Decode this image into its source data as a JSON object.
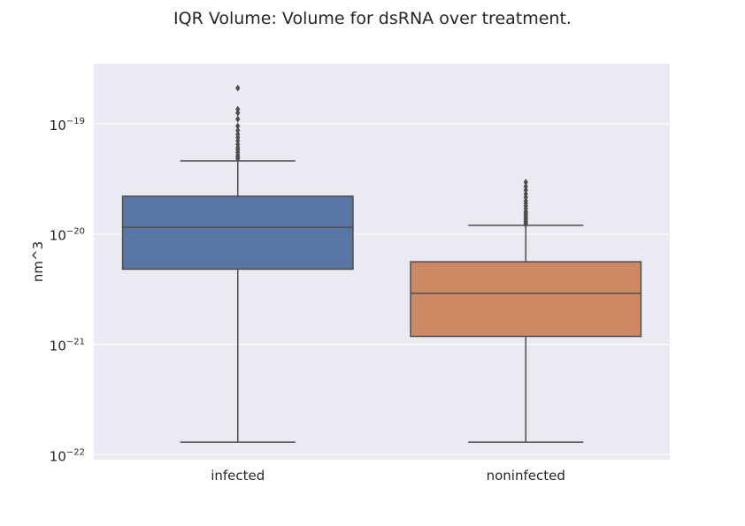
{
  "chart_data": {
    "type": "box",
    "title": "IQR Volume: Volume for dsRNA over treatment.",
    "xlabel": "",
    "ylabel": "nm^3",
    "yscale": "log",
    "ylim": [
      9e-23,
      3.5e-19
    ],
    "y_ticks": [
      {
        "value": 1e-22,
        "base": "10",
        "exp": "−22"
      },
      {
        "value": 1e-21,
        "base": "10",
        "exp": "−21"
      },
      {
        "value": 1e-20,
        "base": "10",
        "exp": "−20"
      },
      {
        "value": 1e-19,
        "base": "10",
        "exp": "−19"
      }
    ],
    "grid": true,
    "categories": [
      "infected",
      "noninfected"
    ],
    "boxes": [
      {
        "category": "infected",
        "color": "#5875a4",
        "whisker_low": 1.3e-22,
        "q1": 4.8e-21,
        "median": 1.15e-20,
        "q3": 2.2e-20,
        "whisker_high": 4.6e-20,
        "outliers": [
          4.8e-20,
          5e-20,
          5.2e-20,
          5.5e-20,
          5.8e-20,
          6.1e-20,
          6.5e-20,
          7e-20,
          7.5e-20,
          8e-20,
          8.7e-20,
          9.5e-20,
          1.1e-19,
          1.25e-19,
          1.35e-19,
          2.1e-19
        ]
      },
      {
        "category": "noninfected",
        "color": "#cc8963",
        "whisker_low": 1.3e-22,
        "q1": 1.18e-21,
        "median": 2.9e-21,
        "q3": 5.6e-21,
        "whisker_high": 1.2e-20,
        "outliers": [
          1.22e-20,
          1.26e-20,
          1.3e-20,
          1.35e-20,
          1.4e-20,
          1.45e-20,
          1.5e-20,
          1.55e-20,
          1.6e-20,
          1.7e-20,
          1.8e-20,
          1.9e-20,
          2e-20,
          2.15e-20,
          2.3e-20,
          2.5e-20,
          2.7e-20,
          2.95e-20
        ]
      }
    ],
    "colors": {
      "background": "#eaeaf2",
      "grid": "#ffffff",
      "line": "#4d4d4d"
    }
  }
}
